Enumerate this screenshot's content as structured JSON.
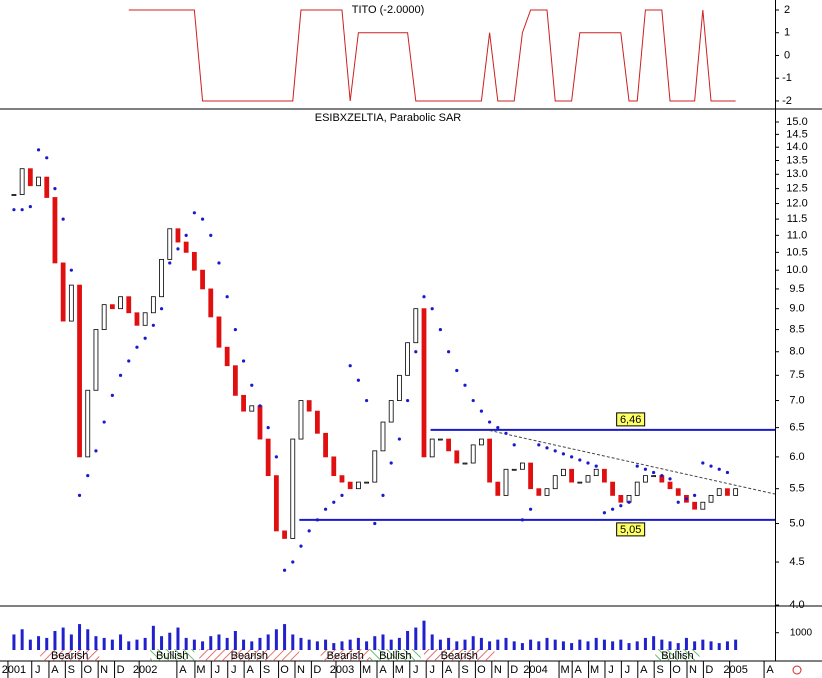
{
  "chart_data": {
    "type": "candlestick",
    "title": "ESIBXZELTIA, Parabolic SAR",
    "indicator_title": "TITO (-2.0000)",
    "x": [
      0,
      0.5,
      1,
      1.5,
      2,
      2.5,
      3,
      3.5,
      4,
      4.5,
      5,
      5.5,
      6,
      6.5,
      7,
      7.5,
      8,
      8.5,
      9,
      9.5,
      10,
      10.5,
      11,
      11.5,
      12,
      12.5,
      13,
      13.5,
      14,
      14.5,
      15,
      15.5,
      16,
      16.5,
      17,
      17.5,
      18,
      18.5,
      19,
      19.5,
      20,
      20.5,
      21,
      21.5,
      22,
      22.5,
      23,
      23.5,
      24,
      24.5,
      25,
      25.5,
      26,
      26.5,
      27,
      27.5,
      28,
      28.5,
      29,
      29.5,
      30,
      30.5,
      31,
      31.5,
      32,
      32.5,
      33,
      33.5,
      34,
      34.5,
      35,
      35.5,
      36,
      36.5,
      37,
      37.5,
      38,
      38.5,
      39,
      39.5,
      40,
      40.5,
      41,
      41.5,
      42,
      42.5,
      43,
      43.5,
      44
    ],
    "series": [
      {
        "name": "ESIBXZELTIA",
        "color": "#e01010",
        "values": [
          12.3,
          13.2,
          12.6,
          12.9,
          12.2,
          10.2,
          8.7,
          9.6,
          6.0,
          7.2,
          8.5,
          9.1,
          9.0,
          9.3,
          8.9,
          8.6,
          8.9,
          9.3,
          10.3,
          11.2,
          10.8,
          10.5,
          10.0,
          9.5,
          8.8,
          8.1,
          7.7,
          7.1,
          6.8,
          6.9,
          6.3,
          5.7,
          4.9,
          4.8,
          6.3,
          7.0,
          6.8,
          6.4,
          6.0,
          5.7,
          5.6,
          5.5,
          5.6,
          5.6,
          6.1,
          6.6,
          7.0,
          7.5,
          8.2,
          9.0,
          6.0,
          6.3,
          6.3,
          6.1,
          5.9,
          5.9,
          6.2,
          6.3,
          5.6,
          5.4,
          5.8,
          5.8,
          5.9,
          5.5,
          5.4,
          5.5,
          5.7,
          5.8,
          5.6,
          5.6,
          5.7,
          5.8,
          5.6,
          5.4,
          5.3,
          5.4,
          5.6,
          5.7,
          5.7,
          5.6,
          5.5,
          5.4,
          5.3,
          5.2,
          5.3,
          5.4,
          5.5,
          5.4,
          5.5
        ]
      },
      {
        "name": "Parabolic SAR",
        "color": "#1a1acc",
        "values": [
          11.8,
          11.8,
          11.9,
          13.9,
          13.6,
          12.5,
          11.5,
          10.0,
          5.4,
          5.7,
          6.1,
          6.6,
          7.1,
          7.5,
          7.8,
          8.1,
          8.3,
          8.6,
          9.0,
          10.2,
          10.6,
          11.0,
          11.7,
          11.5,
          11.0,
          10.2,
          9.3,
          8.5,
          7.8,
          7.3,
          6.9,
          6.5,
          6.0,
          4.4,
          4.5,
          4.7,
          4.9,
          5.05,
          5.2,
          5.3,
          5.4,
          7.7,
          7.4,
          7.0,
          5.0,
          5.4,
          5.9,
          6.3,
          7.0,
          8.0,
          9.3,
          9.0,
          8.5,
          8.0,
          7.6,
          7.3,
          7.0,
          6.8,
          6.6,
          6.5,
          6.4,
          6.2,
          5.05,
          5.2,
          6.2,
          6.15,
          6.1,
          6.05,
          6.0,
          5.95,
          5.9,
          5.85,
          5.15,
          5.2,
          5.25,
          5.3,
          5.85,
          5.8,
          5.75,
          5.7,
          5.65,
          5.3,
          5.35,
          5.4,
          5.9,
          5.85,
          5.8,
          5.75,
          null
        ]
      },
      {
        "name": "TITO",
        "color": "#cc2020",
        "values": [
          null,
          null,
          null,
          null,
          null,
          null,
          null,
          null,
          null,
          null,
          null,
          null,
          null,
          null,
          2,
          2,
          2,
          2,
          2,
          2,
          2,
          2,
          2,
          -2,
          -2,
          -2,
          -2,
          -2,
          -2,
          -2,
          -2,
          -2,
          -2,
          -2,
          -2,
          2,
          2,
          2,
          2,
          2,
          2,
          -2,
          1,
          1,
          1,
          1,
          1,
          1,
          1,
          -2,
          -2,
          -2,
          -2,
          -2,
          -2,
          -2,
          -2,
          -2,
          1,
          -2,
          -2,
          -2,
          1,
          2,
          2,
          2,
          -2,
          -2,
          -2,
          1,
          1,
          1,
          1,
          1,
          1,
          -2,
          -2,
          2,
          2,
          2,
          -2,
          -2,
          -2,
          -2,
          2,
          -2,
          -2,
          -2,
          -2
        ]
      },
      {
        "name": "Volume",
        "color": "#2020cc",
        "values": [
          900,
          1200,
          600,
          800,
          700,
          1100,
          1300,
          900,
          1500,
          1200,
          800,
          700,
          600,
          900,
          500,
          600,
          700,
          1400,
          800,
          1000,
          1300,
          700,
          600,
          500,
          800,
          900,
          700,
          1100,
          600,
          500,
          700,
          900,
          1200,
          1500,
          900,
          700,
          600,
          500,
          600,
          400,
          500,
          600,
          700,
          500,
          800,
          900,
          600,
          700,
          1100,
          1300,
          1700,
          900,
          600,
          700,
          500,
          600,
          800,
          700,
          500,
          600,
          700,
          500,
          400,
          600,
          500,
          700,
          600,
          500,
          400,
          600,
          500,
          700,
          600,
          500,
          600,
          400,
          500,
          700,
          800,
          600,
          500,
          400,
          700,
          500,
          600,
          500,
          400,
          500,
          600
        ]
      }
    ],
    "xlim": [
      -0.85,
      46.4
    ],
    "xticks": [
      {
        "value": 0,
        "label": "2001"
      },
      {
        "value": 1.45,
        "label": "J"
      },
      {
        "value": 2.5,
        "label": "A"
      },
      {
        "value": 3.5,
        "label": "S"
      },
      {
        "value": 4.5,
        "label": "O"
      },
      {
        "value": 5.5,
        "label": "N"
      },
      {
        "value": 6.5,
        "label": "D"
      },
      {
        "value": 8,
        "label": "2002"
      },
      {
        "value": 10.3,
        "label": "A"
      },
      {
        "value": 11.4,
        "label": "M"
      },
      {
        "value": 12.4,
        "label": "J"
      },
      {
        "value": 13.4,
        "label": "J"
      },
      {
        "value": 14.4,
        "label": "A"
      },
      {
        "value": 15.4,
        "label": "S"
      },
      {
        "value": 16.5,
        "label": "O"
      },
      {
        "value": 17.5,
        "label": "N"
      },
      {
        "value": 18.5,
        "label": "D"
      },
      {
        "value": 20,
        "label": "2003"
      },
      {
        "value": 21.5,
        "label": "M"
      },
      {
        "value": 22.5,
        "label": "A"
      },
      {
        "value": 23.5,
        "label": "M"
      },
      {
        "value": 24.5,
        "label": "J"
      },
      {
        "value": 25.5,
        "label": "J"
      },
      {
        "value": 26.5,
        "label": "A"
      },
      {
        "value": 27.5,
        "label": "S"
      },
      {
        "value": 28.5,
        "label": "O"
      },
      {
        "value": 29.5,
        "label": "N"
      },
      {
        "value": 30.5,
        "label": "D"
      },
      {
        "value": 31.8,
        "label": "2004"
      },
      {
        "value": 33.6,
        "label": "M"
      },
      {
        "value": 34.4,
        "label": "A"
      },
      {
        "value": 35.4,
        "label": "M"
      },
      {
        "value": 36.4,
        "label": "J"
      },
      {
        "value": 37.4,
        "label": "J"
      },
      {
        "value": 38.4,
        "label": "A"
      },
      {
        "value": 39.4,
        "label": "S"
      },
      {
        "value": 40.4,
        "label": "O"
      },
      {
        "value": 41.4,
        "label": "N"
      },
      {
        "value": 42.4,
        "label": "D"
      },
      {
        "value": 44,
        "label": "2005"
      },
      {
        "value": 46.1,
        "label": "A"
      }
    ],
    "ylim": [
      3.99,
      15.5
    ],
    "log_y": true,
    "yticks": [
      {
        "value": 4,
        "label": "4.0"
      },
      {
        "value": 4.5,
        "label": "4.5"
      },
      {
        "value": 5,
        "label": "5.0"
      },
      {
        "value": 5.5,
        "label": "5.5"
      },
      {
        "value": 6,
        "label": "6.0"
      },
      {
        "value": 6.5,
        "label": "6.5"
      },
      {
        "value": 7,
        "label": "7.0"
      },
      {
        "value": 7.5,
        "label": "7.5"
      },
      {
        "value": 8,
        "label": "8.0"
      },
      {
        "value": 8.5,
        "label": "8.5"
      },
      {
        "value": 9,
        "label": "9.0"
      },
      {
        "value": 9.5,
        "label": "9.5"
      },
      {
        "value": 10,
        "label": "10.0"
      },
      {
        "value": 10.5,
        "label": "10.5"
      },
      {
        "value": 11,
        "label": "11.0"
      },
      {
        "value": 11.5,
        "label": "11.5"
      },
      {
        "value": 12,
        "label": "12.0"
      },
      {
        "value": 12.5,
        "label": "12.5"
      },
      {
        "value": 13,
        "label": "13.0"
      },
      {
        "value": 13.5,
        "label": "13.5"
      },
      {
        "value": 14,
        "label": "14.0"
      },
      {
        "value": 14.5,
        "label": "14.5"
      },
      {
        "value": 15,
        "label": "15.0"
      }
    ],
    "tito_ylim": [
      -2.31,
      2.44
    ],
    "tito_yticks": [
      2,
      1,
      0,
      -1,
      -2
    ],
    "volume_ylim": [
      0,
      2200
    ],
    "volume_yticks": [
      1000
    ],
    "levels": [
      6.46,
      5.05
    ],
    "level_labels": [
      "6,46",
      "5,05"
    ],
    "level_starts": [
      25.4,
      17.4
    ],
    "trendline": {
      "x": [
        29,
        46.4
      ],
      "y": [
        6.45,
        5.42
      ]
    },
    "signals": [
      {
        "label": "Bearish",
        "x": [
          1.6,
          5.2
        ]
      },
      {
        "label": "Bullish",
        "x": [
          8.3,
          11
        ]
      },
      {
        "label": "Bearish",
        "x": [
          11.3,
          17.4
        ]
      },
      {
        "label": "Bearish",
        "x": [
          18.7,
          21.7
        ]
      },
      {
        "label": "Bullish",
        "x": [
          21.7,
          24.8
        ]
      },
      {
        "label": "Bearish",
        "x": [
          25,
          29.3
        ]
      },
      {
        "label": "Bullish",
        "x": [
          39.1,
          41.8
        ]
      }
    ]
  }
}
